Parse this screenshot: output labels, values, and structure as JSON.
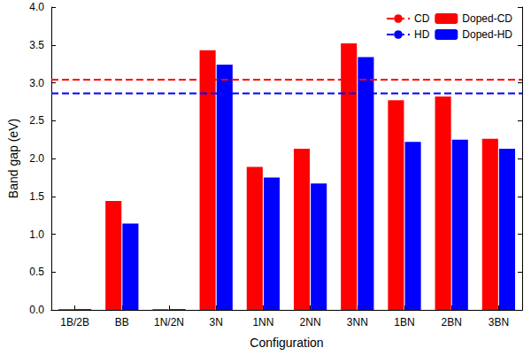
{
  "chart_data": {
    "type": "bar",
    "categories": [
      "1B/2B",
      "BB",
      "1N/2N",
      "3N",
      "1NN",
      "2NN",
      "3NN",
      "1BN",
      "2BN",
      "3BN"
    ],
    "x_label": "Configuration",
    "y_label": "Band gap (eV)",
    "ylim": [
      0,
      4
    ],
    "yticks": [
      {
        "value": 0,
        "label": "0.0"
      },
      0.5,
      {
        "value": 1,
        "label": "1.0"
      },
      1.5,
      {
        "value": 2,
        "label": "2.0"
      },
      2.5,
      {
        "value": 3,
        "label": "3.0"
      },
      3.5,
      {
        "value": 4,
        "label": "4.0"
      }
    ],
    "grid": false,
    "legend": "upper right",
    "series": [
      {
        "name": "CD",
        "type": "line",
        "line_style": "dashed",
        "color": "#ff0000",
        "values": [
          3.04,
          3.04,
          3.04,
          3.04,
          3.04,
          3.04,
          3.04,
          3.04,
          3.04,
          3.04
        ]
      },
      {
        "name": "Doped-CD",
        "type": "bar",
        "color": "#ff0000",
        "values": [
          0.01,
          1.44,
          0.01,
          3.43,
          1.89,
          2.13,
          3.52,
          2.77,
          2.82,
          2.26
        ]
      },
      {
        "name": "HD",
        "type": "line",
        "line_style": "dashed",
        "color": "#0000ff",
        "values": [
          2.86,
          2.86,
          2.86,
          2.86,
          2.86,
          2.86,
          2.86,
          2.86,
          2.86,
          2.86
        ]
      },
      {
        "name": "Doped-HD",
        "type": "bar",
        "color": "#0000ff",
        "values": [
          0.01,
          1.14,
          0.01,
          3.24,
          1.75,
          1.67,
          3.34,
          2.22,
          2.25,
          2.13
        ]
      }
    ]
  }
}
